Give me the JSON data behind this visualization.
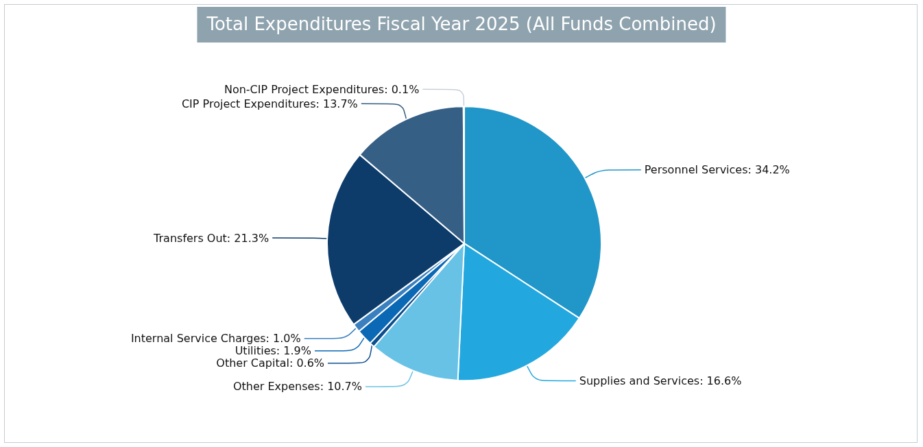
{
  "chart_data": {
    "type": "pie",
    "title": "Total Expenditures Fiscal Year 2025 (All Funds Combined)",
    "categories": [
      "Personnel Services",
      "Supplies and Services",
      "Other Expenses",
      "Other Capital",
      "Utilities",
      "Internal Service Charges",
      "Transfers Out",
      "CIP Project Expenditures",
      "Non-CIP Project Expenditures"
    ],
    "values": [
      34.2,
      16.6,
      10.7,
      0.6,
      1.9,
      1.0,
      21.3,
      13.7,
      0.1
    ],
    "value_labels": [
      "34.2%",
      "16.6%",
      "10.7%",
      "0.6%",
      "1.9%",
      "1.0%",
      "21.3%",
      "13.7%",
      "0.1%"
    ],
    "colors": [
      "#2196c8",
      "#22a8df",
      "#68c2e6",
      "#0b4f8f",
      "#0a68b4",
      "#3a80bf",
      "#0d3c6b",
      "#365f86",
      "#c8d0d8"
    ],
    "legend": false
  }
}
